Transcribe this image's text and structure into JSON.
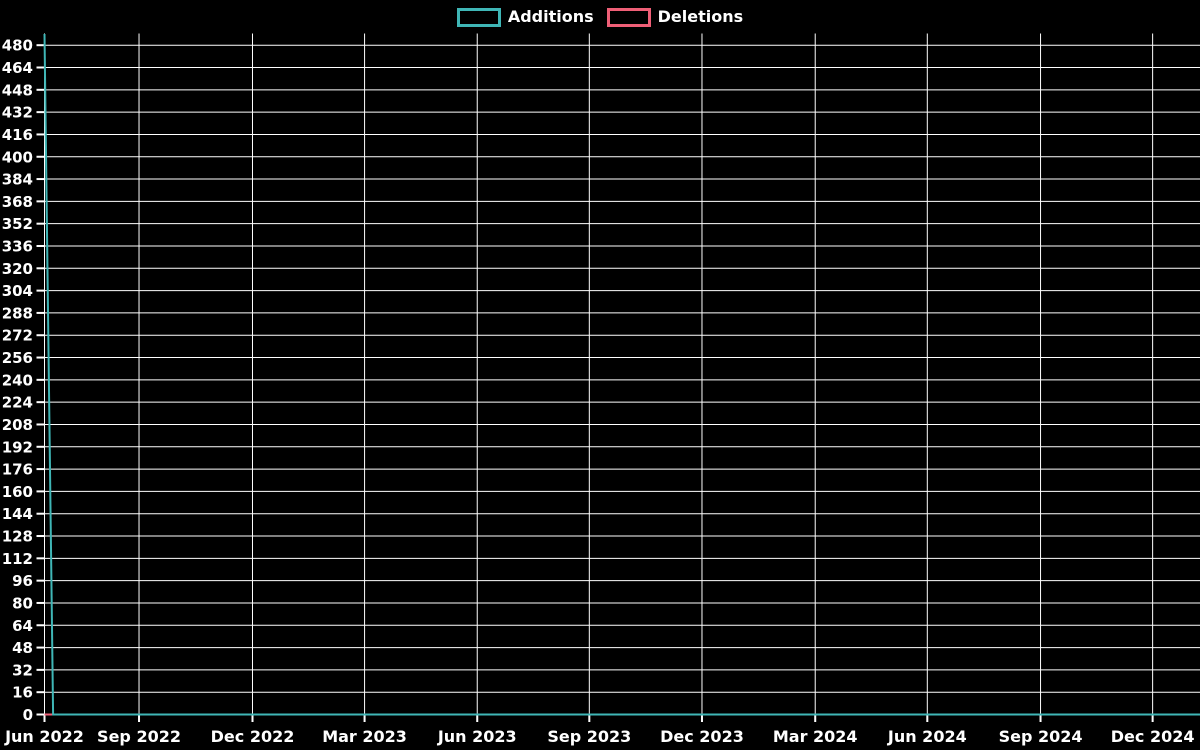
{
  "chart_data": {
    "type": "line",
    "title": "",
    "background_color": "#000000",
    "grid_color": "#ffffff",
    "text_color": "#ffffff",
    "grid": true,
    "legend": {
      "position": "top-center",
      "items": [
        {
          "label": "Additions",
          "color": "#3fb6b6"
        },
        {
          "label": "Deletions",
          "color": "#ef5f77"
        }
      ]
    },
    "x_axis": {
      "ticks": [
        {
          "label": "Jun 2022",
          "pos": 0.0
        },
        {
          "label": "Sep 2022",
          "pos": 0.0818
        },
        {
          "label": "Dec 2022",
          "pos": 0.18
        },
        {
          "label": "Mar 2023",
          "pos": 0.277
        },
        {
          "label": "Jun 2023",
          "pos": 0.3745
        },
        {
          "label": "Sep 2023",
          "pos": 0.4715
        },
        {
          "label": "Dec 2023",
          "pos": 0.569
        },
        {
          "label": "Mar 2024",
          "pos": 0.667
        },
        {
          "label": "Jun 2024",
          "pos": 0.764
        },
        {
          "label": "Sep 2024",
          "pos": 0.862
        },
        {
          "label": "Dec 2024",
          "pos": 0.959
        }
      ]
    },
    "y_axis": {
      "min": 0,
      "max": 488,
      "tick_step": 16,
      "ticks": [
        480,
        464,
        448,
        432,
        416,
        400,
        384,
        368,
        352,
        336,
        320,
        304,
        288,
        272,
        256,
        240,
        224,
        208,
        192,
        176,
        160,
        144,
        128,
        112,
        96,
        80,
        64,
        48,
        32,
        16,
        0
      ]
    },
    "series": [
      {
        "name": "Deletions",
        "color": "#ef5f77",
        "points": [
          [
            0,
            0
          ],
          [
            1,
            0
          ]
        ]
      },
      {
        "name": "Additions",
        "color": "#3fb6b6",
        "points": [
          [
            0,
            488
          ],
          [
            0.0074,
            0
          ],
          [
            1,
            0
          ]
        ]
      }
    ]
  }
}
